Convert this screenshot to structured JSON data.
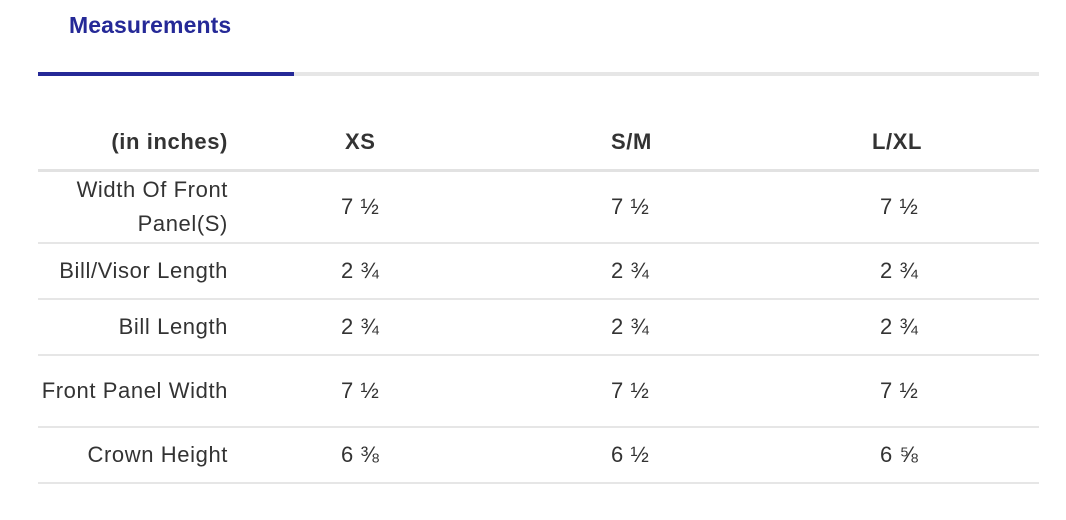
{
  "tabs": [
    {
      "label": "Measurements",
      "active": true
    }
  ],
  "colors": {
    "accent": "#252997",
    "text": "#333333",
    "rule": "#e6e6e6"
  },
  "table": {
    "headers": [
      "(in inches)",
      "XS",
      "S/M",
      "L/XL"
    ],
    "rows": [
      {
        "label": "Width Of Front Panel(S)",
        "values": [
          "7 ½",
          "7 ½",
          "7 ½"
        ]
      },
      {
        "label": "Bill/Visor Length",
        "values": [
          "2 ¾",
          "2 ¾",
          "2 ¾"
        ]
      },
      {
        "label": "Bill Length",
        "values": [
          "2 ¾",
          "2 ¾",
          "2 ¾"
        ]
      },
      {
        "label": "Front Panel Width",
        "values": [
          "7 ½",
          "7 ½",
          "7 ½"
        ]
      },
      {
        "label": "Crown Height",
        "values": [
          "6 ⅜",
          "6 ½",
          "6 ⅝"
        ]
      }
    ]
  }
}
